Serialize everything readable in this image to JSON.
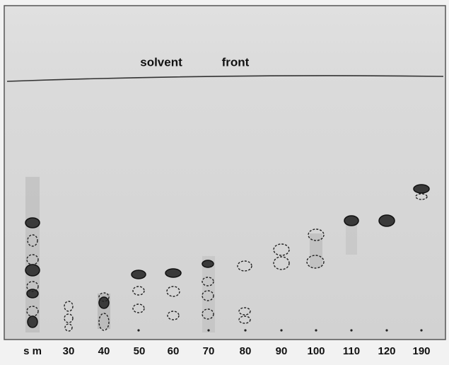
{
  "plate": {
    "solvent_front": [
      "solvent",
      "front"
    ],
    "lanes": [
      "s m",
      "30",
      "40",
      "50",
      "60",
      "70",
      "80",
      "90",
      "100",
      "110",
      "120",
      "190"
    ]
  }
}
